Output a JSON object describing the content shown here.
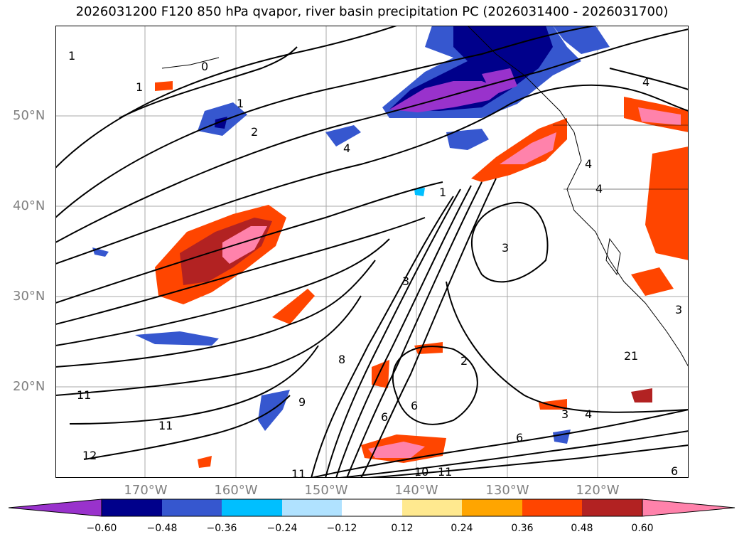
{
  "title": "2026031200 F120 850 hPa qvapor, river basin precipitation PC (2026031400 - 2026031700)",
  "latitude_labels": [
    "50°N",
    "40°N",
    "30°N",
    "20°N"
  ],
  "longitude_labels": [
    "170°W",
    "160°W",
    "150°W",
    "140°W",
    "130°W",
    "120°W"
  ],
  "colorbar": {
    "tick_labels": [
      "−0.60",
      "−0.48",
      "−0.36",
      "−0.24",
      "−0.12",
      "0.12",
      "0.24",
      "0.36",
      "0.48",
      "0.60"
    ],
    "colors": [
      "#9932cc",
      "#00008b",
      "#3657cf",
      "#00bfff",
      "#b0e2ff",
      "#ffffff",
      "#ffe98f",
      "#ffa500",
      "#ff4500",
      "#b22222",
      "#ff82ab"
    ],
    "extend": "both"
  },
  "contour_labels": [
    "1",
    "0",
    "1",
    "1",
    "2",
    "4",
    "2",
    "4",
    "1",
    "3",
    "4",
    "4",
    "3",
    "3",
    "2",
    "1",
    "3",
    "4",
    "6",
    "6",
    "8",
    "9",
    "10",
    "11",
    "11",
    "11",
    "12",
    "6",
    "6",
    "11"
  ],
  "map_colors": {
    "land": "#ffffff",
    "ocean": "#ffffff",
    "grid": "#a9a9a9",
    "contour": "#000000",
    "coast": "#000000"
  }
}
